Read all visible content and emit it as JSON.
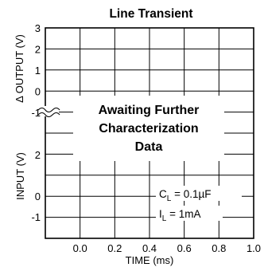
{
  "chart_data": {
    "type": "line",
    "title": "Line Transient",
    "xlabel": "TIME (ms)",
    "x_ticks": [
      "0.0",
      "0.2",
      "0.4",
      "0.6",
      "0.8",
      "1.0"
    ],
    "xlim": [
      -0.2,
      1.0
    ],
    "panels": [
      {
        "ylabel": "Δ OUTPUT (V)",
        "y_ticks": [
          "3",
          "2",
          "1",
          "0",
          "-1"
        ],
        "ylim": [
          -1.5,
          3
        ]
      },
      {
        "ylabel": "INPUT (V)",
        "y_ticks": [
          "2",
          "0",
          "-1"
        ],
        "ylim": [
          -1.5,
          3
        ]
      }
    ],
    "overlay_text": [
      "Awaiting Further",
      "Characterization",
      "Data"
    ],
    "annotations": [
      {
        "main": "C",
        "sub": "L",
        "value": " = 0.1µF"
      },
      {
        "main": "I",
        "sub": "L",
        "value": " = 1mA"
      }
    ],
    "grid": true,
    "series": []
  }
}
